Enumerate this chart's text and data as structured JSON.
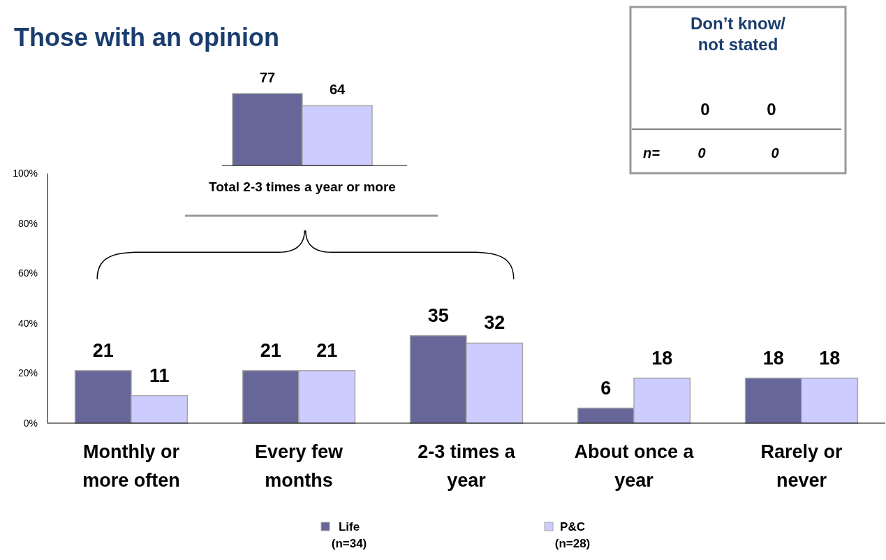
{
  "chart_data": [
    {
      "type": "bar",
      "categories": [
        "Monthly or more often",
        "Every few months",
        "2-3 times a year",
        "About once a year",
        "Rarely or never"
      ],
      "series": [
        {
          "name": "Life (n=34)",
          "color": "#666699",
          "values": [
            21,
            21,
            35,
            6,
            18
          ]
        },
        {
          "name": "P&C (n=28)",
          "color": "#ccccff",
          "values": [
            11,
            21,
            32,
            18,
            18
          ]
        }
      ],
      "ylim": [
        0,
        100
      ],
      "yticks": [
        {
          "value": 0,
          "label": "0%"
        },
        {
          "value": 20,
          "label": "20%"
        },
        {
          "value": 40,
          "label": "40%"
        },
        {
          "value": 60,
          "label": "60%"
        },
        {
          "value": 80,
          "label": "80%"
        },
        {
          "value": 100,
          "label": "100%"
        }
      ],
      "data_labels": true,
      "legend": "bottom"
    },
    {
      "type": "bar",
      "title": "Those with an opinion",
      "categories": [
        null
      ],
      "xlabel": "Total 2-3 times a year or more",
      "series": [
        {
          "color": "#666699",
          "values": [
            77
          ]
        },
        {
          "color": "#ccccff",
          "values": [
            64
          ]
        }
      ],
      "data_labels": true
    },
    {
      "type": "other",
      "title": "Don’t know/ not stated",
      "annotations": [
        "0",
        "0",
        "n=",
        "0",
        "0"
      ]
    }
  ]
}
